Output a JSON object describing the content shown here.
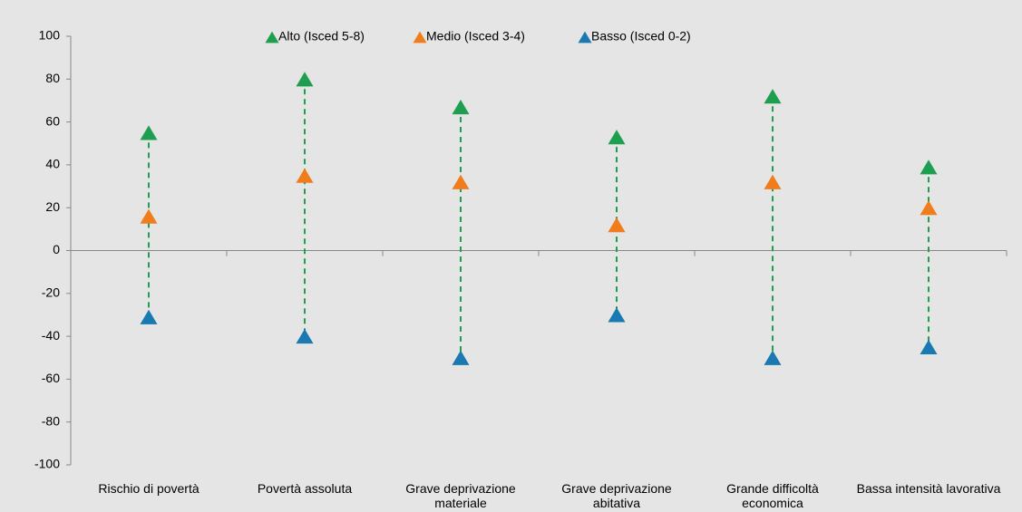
{
  "chart_data": {
    "type": "dumbbell",
    "categories": [
      "Rischio di povertà",
      "Povertà assoluta",
      "Grave deprivazione materiale",
      "Grave deprivazione abitativa",
      "Grande difficoltà economica",
      "Bassa intensità lavorativa"
    ],
    "series": [
      {
        "name": "Alto (Isced 5-8)",
        "color": "#1e9e4f",
        "values": [
          55,
          80,
          67,
          53,
          72,
          39
        ]
      },
      {
        "name": "Medio (Isced 3-4)",
        "color": "#f07c1b",
        "values": [
          16,
          35,
          32,
          12,
          32,
          20
        ]
      },
      {
        "name": "Basso (Isced 0-2)",
        "color": "#1979b0",
        "values": [
          -31,
          -40,
          -50,
          -30,
          -50,
          -45
        ]
      }
    ],
    "ylim": [
      -100,
      100
    ],
    "yticks": [
      -100,
      -80,
      -60,
      -40,
      -20,
      0,
      20,
      40,
      60,
      80,
      100
    ],
    "connector_color": "#1e9e4f",
    "legend": "top"
  }
}
